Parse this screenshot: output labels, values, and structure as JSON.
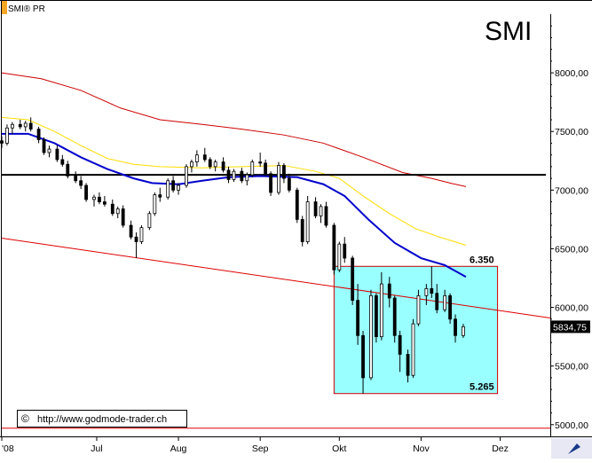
{
  "header": {
    "symbol_label": "SMI® PR"
  },
  "chart_title": "SMI",
  "copyright": {
    "symbol": "©",
    "url": "http://www.godmode-trader.ch"
  },
  "price_tag": "5834,75",
  "colors": {
    "background": "#ffffff",
    "box_fill": "#99ffff",
    "box_stroke": "#cc0000",
    "price_tag_bg": "#000000",
    "sma_blue": "#0000cc",
    "sma_yellow": "#ffdd00",
    "sma_red": "#cc0000",
    "support_black": "#000000",
    "candle": "#000000",
    "trend_red": "#dd0000",
    "axis": "#000000"
  },
  "chart_data": {
    "type": "candlestick",
    "title": "SMI",
    "y_axis": {
      "min": 4900,
      "max": 8500,
      "ticks": [
        5000,
        5500,
        6000,
        6500,
        7000,
        7500,
        8000
      ],
      "tick_labels": [
        "5000,00",
        "5500,00",
        "6000,00",
        "6500,00",
        "7000,00",
        "7500,00",
        "8000,00"
      ]
    },
    "x_axis": {
      "start": "2008-05-26",
      "end": "2008-12-20",
      "labels": [
        {
          "date": "2008-05-26",
          "text": "'08"
        },
        {
          "date": "2008-07-01",
          "text": "Jul"
        },
        {
          "date": "2008-08-01",
          "text": "Aug"
        },
        {
          "date": "2008-09-01",
          "text": "Sep"
        },
        {
          "date": "2008-10-01",
          "text": "Okt"
        },
        {
          "date": "2008-11-01",
          "text": "Nov"
        },
        {
          "date": "2008-12-01",
          "text": "Dez"
        }
      ]
    },
    "box": {
      "x_start": "2008-09-29",
      "x_end": "2008-11-30",
      "high": 6350,
      "low": 5265,
      "high_label": "6.350",
      "low_label": "5.265"
    },
    "support_line": 7130,
    "bottom_line": 4970,
    "trendline": {
      "x1": "2008-05-26",
      "y1": 6590,
      "x2": "2008-12-20",
      "y2": 5910
    },
    "last_price": 5834.75,
    "sma_red": [
      [
        "2008-05-26",
        8000
      ],
      [
        "2008-06-10",
        7950
      ],
      [
        "2008-06-25",
        7850
      ],
      [
        "2008-07-10",
        7700
      ],
      [
        "2008-07-25",
        7600
      ],
      [
        "2008-08-10",
        7560
      ],
      [
        "2008-08-25",
        7520
      ],
      [
        "2008-09-10",
        7470
      ],
      [
        "2008-09-25",
        7400
      ],
      [
        "2008-10-10",
        7280
      ],
      [
        "2008-10-25",
        7150
      ],
      [
        "2008-11-05",
        7100
      ],
      [
        "2008-11-12",
        7060
      ],
      [
        "2008-11-18",
        7030
      ]
    ],
    "sma_yellow": [
      [
        "2008-05-26",
        7620
      ],
      [
        "2008-06-05",
        7600
      ],
      [
        "2008-06-15",
        7500
      ],
      [
        "2008-06-25",
        7380
      ],
      [
        "2008-07-05",
        7270
      ],
      [
        "2008-07-15",
        7220
      ],
      [
        "2008-07-25",
        7200
      ],
      [
        "2008-08-10",
        7190
      ],
      [
        "2008-08-25",
        7200
      ],
      [
        "2008-09-10",
        7210
      ],
      [
        "2008-09-22",
        7160
      ],
      [
        "2008-10-01",
        7100
      ],
      [
        "2008-10-10",
        6950
      ],
      [
        "2008-10-20",
        6800
      ],
      [
        "2008-10-30",
        6670
      ],
      [
        "2008-11-08",
        6600
      ],
      [
        "2008-11-18",
        6530
      ]
    ],
    "sma_blue": [
      [
        "2008-05-26",
        7480
      ],
      [
        "2008-06-05",
        7480
      ],
      [
        "2008-06-15",
        7400
      ],
      [
        "2008-06-25",
        7280
      ],
      [
        "2008-07-05",
        7180
      ],
      [
        "2008-07-15",
        7100
      ],
      [
        "2008-07-22",
        7060
      ],
      [
        "2008-08-01",
        7050
      ],
      [
        "2008-08-10",
        7080
      ],
      [
        "2008-08-20",
        7110
      ],
      [
        "2008-09-01",
        7120
      ],
      [
        "2008-09-15",
        7110
      ],
      [
        "2008-09-25",
        7050
      ],
      [
        "2008-10-03",
        6950
      ],
      [
        "2008-10-12",
        6750
      ],
      [
        "2008-10-22",
        6550
      ],
      [
        "2008-11-01",
        6420
      ],
      [
        "2008-11-10",
        6360
      ],
      [
        "2008-11-18",
        6260
      ]
    ],
    "candles": [
      [
        "2008-05-26",
        7420,
        7460,
        7360,
        7400
      ],
      [
        "2008-05-28",
        7400,
        7560,
        7380,
        7530
      ],
      [
        "2008-05-30",
        7530,
        7580,
        7480,
        7560
      ],
      [
        "2008-06-02",
        7560,
        7600,
        7520,
        7540
      ],
      [
        "2008-06-04",
        7540,
        7590,
        7500,
        7570
      ],
      [
        "2008-06-06",
        7570,
        7620,
        7500,
        7520
      ],
      [
        "2008-06-09",
        7520,
        7540,
        7400,
        7430
      ],
      [
        "2008-06-11",
        7430,
        7450,
        7300,
        7320
      ],
      [
        "2008-06-13",
        7320,
        7380,
        7280,
        7350
      ],
      [
        "2008-06-16",
        7350,
        7380,
        7240,
        7260
      ],
      [
        "2008-06-18",
        7260,
        7300,
        7200,
        7220
      ],
      [
        "2008-06-20",
        7220,
        7250,
        7100,
        7120
      ],
      [
        "2008-06-23",
        7120,
        7160,
        7060,
        7080
      ],
      [
        "2008-06-25",
        7080,
        7120,
        7010,
        7040
      ],
      [
        "2008-06-27",
        7040,
        7060,
        6900,
        6920
      ],
      [
        "2008-06-30",
        6920,
        6960,
        6860,
        6940
      ],
      [
        "2008-07-02",
        6940,
        6980,
        6880,
        6900
      ],
      [
        "2008-07-04",
        6900,
        6950,
        6860,
        6880
      ],
      [
        "2008-07-07",
        6880,
        6920,
        6780,
        6800
      ],
      [
        "2008-07-09",
        6800,
        6860,
        6760,
        6840
      ],
      [
        "2008-07-11",
        6840,
        6870,
        6680,
        6700
      ],
      [
        "2008-07-14",
        6700,
        6740,
        6580,
        6600
      ],
      [
        "2008-07-16",
        6600,
        6640,
        6420,
        6560
      ],
      [
        "2008-07-18",
        6560,
        6700,
        6540,
        6680
      ],
      [
        "2008-07-21",
        6680,
        6820,
        6660,
        6800
      ],
      [
        "2008-07-23",
        6800,
        6980,
        6780,
        6960
      ],
      [
        "2008-07-25",
        6960,
        7020,
        6900,
        6940
      ],
      [
        "2008-07-28",
        6940,
        7100,
        6920,
        7080
      ],
      [
        "2008-07-30",
        7080,
        7120,
        6980,
        7000
      ],
      [
        "2008-08-01",
        7000,
        7060,
        6960,
        7040
      ],
      [
        "2008-08-04",
        7040,
        7220,
        7020,
        7200
      ],
      [
        "2008-08-06",
        7200,
        7260,
        7150,
        7240
      ],
      [
        "2008-08-08",
        7240,
        7340,
        7200,
        7300
      ],
      [
        "2008-08-11",
        7300,
        7360,
        7240,
        7260
      ],
      [
        "2008-08-13",
        7260,
        7280,
        7180,
        7200
      ],
      [
        "2008-08-15",
        7200,
        7260,
        7160,
        7240
      ],
      [
        "2008-08-18",
        7240,
        7280,
        7150,
        7170
      ],
      [
        "2008-08-20",
        7170,
        7200,
        7060,
        7090
      ],
      [
        "2008-08-22",
        7090,
        7180,
        7070,
        7160
      ],
      [
        "2008-08-25",
        7160,
        7190,
        7060,
        7080
      ],
      [
        "2008-08-27",
        7080,
        7150,
        7040,
        7130
      ],
      [
        "2008-08-29",
        7130,
        7260,
        7110,
        7240
      ],
      [
        "2008-09-01",
        7240,
        7320,
        7200,
        7230
      ],
      [
        "2008-09-03",
        7230,
        7260,
        7120,
        7140
      ],
      [
        "2008-09-05",
        7140,
        7160,
        6950,
        6980
      ],
      [
        "2008-09-08",
        6980,
        7240,
        6960,
        7210
      ],
      [
        "2008-09-10",
        7210,
        7230,
        7060,
        7100
      ],
      [
        "2008-09-12",
        7100,
        7140,
        6980,
        7000
      ],
      [
        "2008-09-15",
        7000,
        7020,
        6720,
        6750
      ],
      [
        "2008-09-17",
        6750,
        6780,
        6520,
        6560
      ],
      [
        "2008-09-19",
        6560,
        6950,
        6540,
        6900
      ],
      [
        "2008-09-22",
        6900,
        6940,
        6760,
        6780
      ],
      [
        "2008-09-24",
        6780,
        6880,
        6720,
        6860
      ],
      [
        "2008-09-26",
        6860,
        6900,
        6680,
        6700
      ],
      [
        "2008-09-29",
        6700,
        6720,
        6280,
        6320
      ],
      [
        "2008-10-01",
        6320,
        6560,
        6300,
        6540
      ],
      [
        "2008-10-03",
        6540,
        6600,
        6380,
        6420
      ],
      [
        "2008-10-06",
        6420,
        6440,
        6020,
        6060
      ],
      [
        "2008-10-08",
        6060,
        6200,
        5680,
        5760
      ],
      [
        "2008-10-10",
        5760,
        5800,
        5265,
        5400
      ],
      [
        "2008-10-13",
        5400,
        6150,
        5380,
        6100
      ],
      [
        "2008-10-15",
        6100,
        6120,
        5700,
        5750
      ],
      [
        "2008-10-17",
        5750,
        6300,
        5720,
        6200
      ],
      [
        "2008-10-20",
        6200,
        6260,
        6000,
        6080
      ],
      [
        "2008-10-22",
        6080,
        6100,
        5700,
        5760
      ],
      [
        "2008-10-24",
        5760,
        5800,
        5450,
        5600
      ],
      [
        "2008-10-27",
        5600,
        5640,
        5360,
        5420
      ],
      [
        "2008-10-29",
        5420,
        5900,
        5400,
        5860
      ],
      [
        "2008-10-31",
        5860,
        6150,
        5840,
        6100
      ],
      [
        "2008-11-03",
        6100,
        6200,
        6020,
        6160
      ],
      [
        "2008-11-05",
        6160,
        6350,
        6080,
        6120
      ],
      [
        "2008-11-07",
        6120,
        6200,
        5950,
        5980
      ],
      [
        "2008-11-10",
        5980,
        6150,
        5960,
        6100
      ],
      [
        "2008-11-12",
        6100,
        6120,
        5860,
        5900
      ],
      [
        "2008-11-14",
        5900,
        5940,
        5700,
        5760
      ],
      [
        "2008-11-17",
        5760,
        5860,
        5740,
        5835
      ]
    ]
  }
}
